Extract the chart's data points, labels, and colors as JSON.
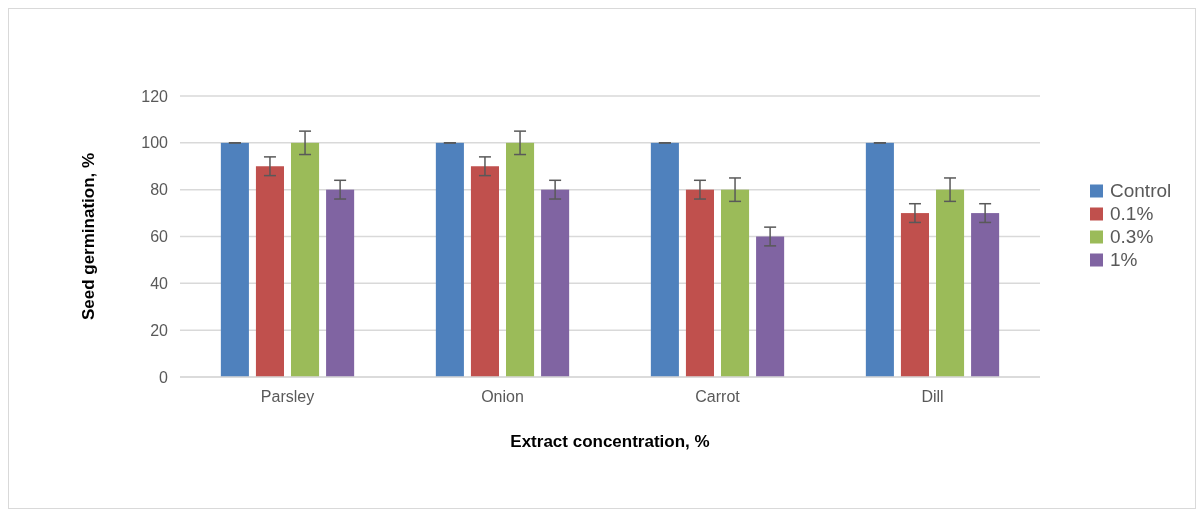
{
  "chart_data": {
    "type": "bar",
    "xlabel": "Extract concentration, %",
    "ylabel": "Seed germination, %",
    "categories": [
      "Parsley",
      "Onion",
      "Carrot",
      "Dill"
    ],
    "series": [
      {
        "name": "Control",
        "color": "#4f81bd",
        "values": [
          100,
          100,
          100,
          100
        ],
        "errors": [
          0,
          0,
          0,
          0
        ]
      },
      {
        "name": "0.1%",
        "color": "#c0504d",
        "values": [
          90,
          90,
          80,
          70
        ],
        "errors": [
          4,
          4,
          4,
          4
        ]
      },
      {
        "name": "0.3%",
        "color": "#9bbb59",
        "values": [
          100,
          100,
          80,
          80
        ],
        "errors": [
          5,
          5,
          5,
          5
        ]
      },
      {
        "name": "1%",
        "color": "#8064a2",
        "values": [
          80,
          80,
          60,
          70
        ],
        "errors": [
          4,
          4,
          4,
          4
        ]
      }
    ],
    "ylim": [
      0,
      120
    ],
    "yticks": [
      0,
      20,
      40,
      60,
      80,
      100,
      120
    ],
    "grid": "y",
    "legend": "right"
  }
}
